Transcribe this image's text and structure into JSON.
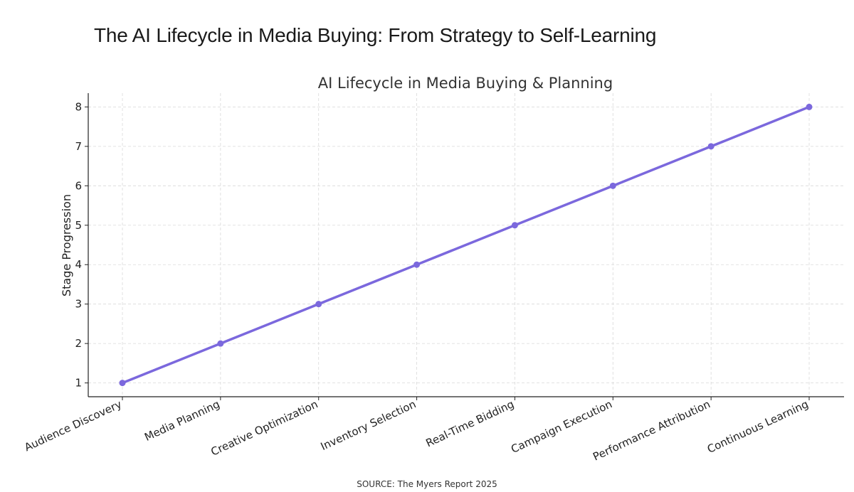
{
  "headline": "The AI Lifecycle in Media Buying: From Strategy to Self-Learning",
  "source": "SOURCE: The Myers Report 2025",
  "chart_data": {
    "type": "line",
    "title": "AI Lifecycle in Media Buying & Planning",
    "xlabel": "",
    "ylabel": "Stage Progression",
    "categories": [
      "Audience Discovery",
      "Media Planning",
      "Creative Optimization",
      "Inventory Selection",
      "Real-Time Bidding",
      "Campaign Execution",
      "Performance Attribution",
      "Continuous Learning"
    ],
    "series": [
      {
        "values": [
          1,
          2,
          3,
          4,
          5,
          6,
          7,
          8
        ]
      }
    ],
    "yticks": [
      1,
      2,
      3,
      4,
      5,
      6,
      7,
      8
    ],
    "ylim": [
      0.65,
      8.35
    ],
    "grid": true,
    "legend": "none",
    "colors": {
      "line": "#7b68dd",
      "grid": "#d9d9d9",
      "axis": "#222222",
      "text": "#222222"
    }
  }
}
